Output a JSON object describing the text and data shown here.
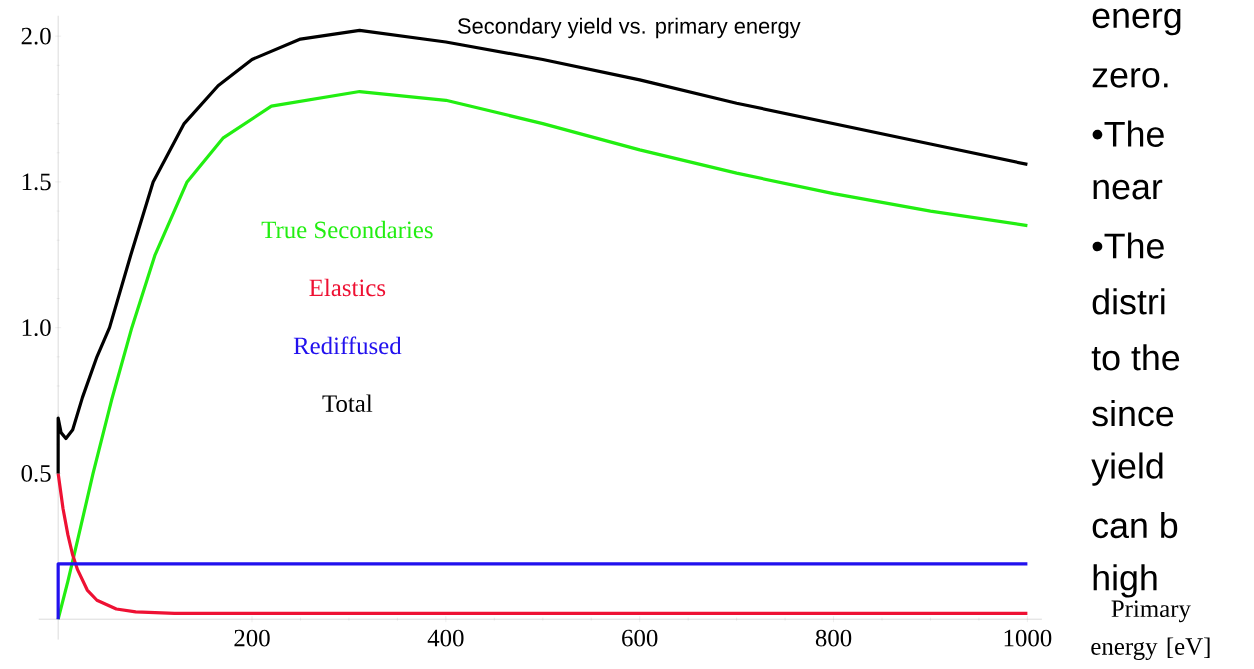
{
  "chart_data": {
    "type": "line",
    "title": "Secondary yield vs. primary energy",
    "xlabel": "Primary energy [eV]",
    "xlim": [
      -20,
      1015
    ],
    "ylim": [
      -0.07,
      2.07
    ],
    "xticks": [
      200,
      400,
      600,
      800,
      1000
    ],
    "yticks": [
      {
        "value": 0.5,
        "label": "0.5"
      },
      {
        "value": 1.0,
        "label": "1.0"
      },
      {
        "value": 1.5,
        "label": "1.5"
      },
      {
        "value": 2.0,
        "label": "2.0"
      }
    ],
    "legend": "left",
    "series": [
      {
        "name": "True Secondaries",
        "color": "#22ee11",
        "x": [
          0,
          10,
          20,
          36,
          55,
          76,
          100,
          133,
          170,
          220,
          311,
          400,
          500,
          600,
          700,
          800,
          900,
          1000
        ],
        "values": [
          0,
          0.13,
          0.27,
          0.5,
          0.75,
          1.0,
          1.25,
          1.5,
          1.65,
          1.76,
          1.81,
          1.78,
          1.7,
          1.61,
          1.53,
          1.46,
          1.4,
          1.35
        ]
      },
      {
        "name": "Elastics",
        "color": "#ee1133",
        "x": [
          0,
          5,
          10,
          15,
          20,
          30,
          40,
          60,
          80,
          120,
          1000
        ],
        "values": [
          0.5,
          0.38,
          0.29,
          0.22,
          0.17,
          0.1,
          0.065,
          0.035,
          0.025,
          0.02,
          0.02
        ]
      },
      {
        "name": "Rediffused",
        "color": "#2211ee",
        "x": [
          0,
          0,
          1000
        ],
        "values": [
          0,
          0.19,
          0.19
        ]
      },
      {
        "name": "Total",
        "color": "#000000",
        "x": [
          0,
          0,
          3,
          8,
          15,
          25,
          40,
          53,
          75,
          98,
          130,
          165,
          200,
          250,
          311,
          400,
          500,
          600,
          700,
          800,
          900,
          1000
        ],
        "values": [
          0.5,
          0.69,
          0.64,
          0.62,
          0.65,
          0.76,
          0.9,
          1.0,
          1.25,
          1.5,
          1.7,
          1.83,
          1.92,
          1.99,
          2.02,
          1.98,
          1.92,
          1.85,
          1.77,
          1.7,
          1.63,
          1.56
        ]
      }
    ],
    "annotations": [
      "energ",
      "zero.",
      "•The",
      "near",
      "•The",
      "distri",
      "to the",
      "since",
      "yield",
      "can b",
      "high"
    ]
  }
}
